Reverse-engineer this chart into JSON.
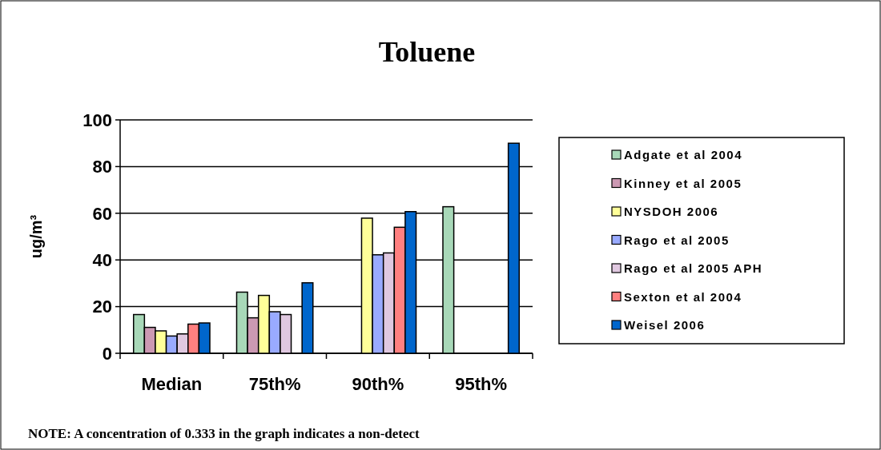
{
  "chart_data": {
    "type": "bar",
    "title": "Toluene",
    "ylabel": "ug/m³",
    "categories": [
      "Median",
      "75th%",
      "90th%",
      "95th%"
    ],
    "series": [
      {
        "name": "Adgate et al 2004",
        "color": "#a8d8b8",
        "values": [
          16.6,
          26.2,
          null,
          62.8
        ]
      },
      {
        "name": "Kinney et al 2005",
        "color": "#cc99b3",
        "values": [
          11.1,
          15.2,
          null,
          null
        ]
      },
      {
        "name": "NYSDOH 2006",
        "color": "#ffff99",
        "values": [
          9.6,
          24.8,
          57.9,
          null
        ]
      },
      {
        "name": "Rago et al 2005",
        "color": "#99aaff",
        "values": [
          7.4,
          17.8,
          42.2,
          null
        ]
      },
      {
        "name": "Rago et al 2005 APH",
        "color": "#e0c8e0",
        "values": [
          8.3,
          16.6,
          43.0,
          null
        ]
      },
      {
        "name": "Sexton et al 2004",
        "color": "#ff8080",
        "values": [
          12.5,
          null,
          54.0,
          null
        ]
      },
      {
        "name": "Weisel 2006",
        "color": "#0066cc",
        "values": [
          13.0,
          30.2,
          60.7,
          90.0
        ]
      }
    ],
    "ylim": [
      0,
      100
    ],
    "yticks": [
      0,
      20,
      40,
      60,
      80,
      100
    ],
    "grid": "y",
    "legend": "right",
    "annotations": [
      "NOTE: A concentration of 0.333 in the graph indicates a non-detect"
    ]
  }
}
